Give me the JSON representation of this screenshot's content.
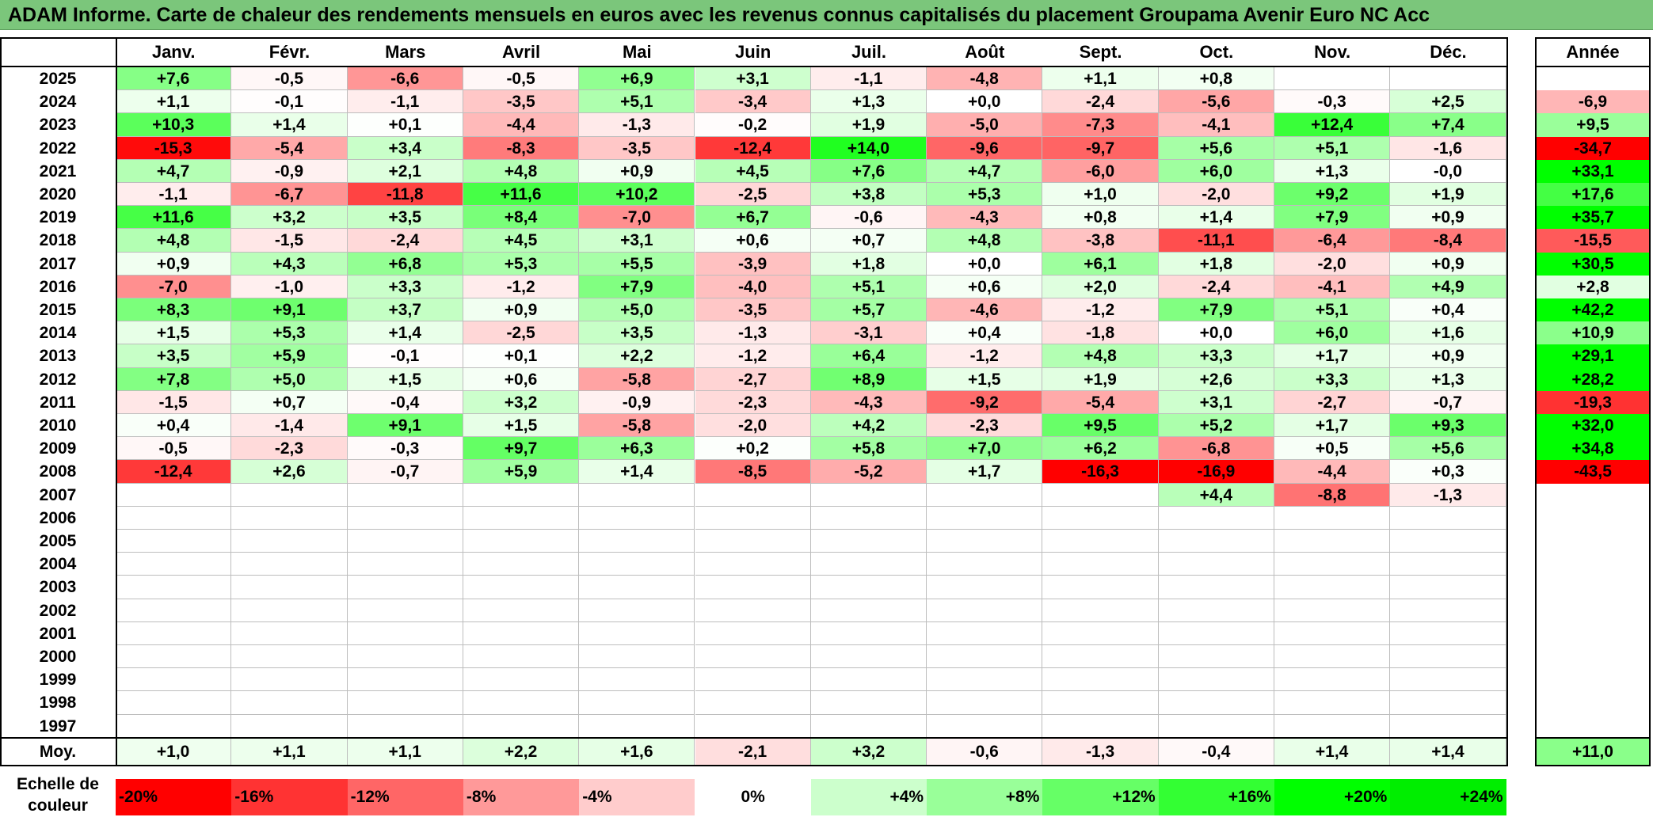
{
  "title": "ADAM Informe. Carte de chaleur des rendements mensuels en euros avec les revenus connus capitalisés du placement Groupama Avenir Euro NC Acc",
  "chart_data": {
    "type": "heatmap",
    "months": [
      "Janv.",
      "Févr.",
      "Mars",
      "Avril",
      "Mai",
      "Juin",
      "Juil.",
      "Août",
      "Sept.",
      "Oct.",
      "Nov.",
      "Déc."
    ],
    "year_header": "Année",
    "years": [
      "2025",
      "2024",
      "2023",
      "2022",
      "2021",
      "2020",
      "2019",
      "2018",
      "2017",
      "2016",
      "2015",
      "2014",
      "2013",
      "2012",
      "2011",
      "2010",
      "2009",
      "2008",
      "2007",
      "2006",
      "2005",
      "2004",
      "2003",
      "2002",
      "2001",
      "2000",
      "1999",
      "1998",
      "1997"
    ],
    "values": [
      [
        7.6,
        -0.5,
        -6.6,
        -0.5,
        6.9,
        3.1,
        -1.1,
        -4.8,
        1.1,
        0.8,
        null,
        null
      ],
      [
        1.1,
        -0.1,
        -1.1,
        -3.5,
        5.1,
        -3.4,
        1.3,
        0.0,
        -2.4,
        -5.6,
        -0.3,
        2.5
      ],
      [
        10.3,
        1.4,
        0.1,
        -4.4,
        -1.3,
        -0.2,
        1.9,
        -5.0,
        -7.3,
        -4.1,
        12.4,
        7.4
      ],
      [
        -15.3,
        -5.4,
        3.4,
        -8.3,
        -3.5,
        -12.4,
        14.0,
        -9.6,
        -9.7,
        5.6,
        5.1,
        -1.6
      ],
      [
        4.7,
        -0.9,
        2.1,
        4.8,
        0.9,
        4.5,
        7.6,
        4.7,
        -6.0,
        6.0,
        1.3,
        -0.0
      ],
      [
        -1.1,
        -6.7,
        -11.8,
        11.6,
        10.2,
        -2.5,
        3.8,
        5.3,
        1.0,
        -2.0,
        9.2,
        1.9
      ],
      [
        11.6,
        3.2,
        3.5,
        8.4,
        -7.0,
        6.7,
        -0.6,
        -4.3,
        0.8,
        1.4,
        7.9,
        0.9
      ],
      [
        4.8,
        -1.5,
        -2.4,
        4.5,
        3.1,
        0.6,
        0.7,
        4.8,
        -3.8,
        -11.1,
        -6.4,
        -8.4
      ],
      [
        0.9,
        4.3,
        6.8,
        5.3,
        5.5,
        -3.9,
        1.8,
        0.0,
        6.1,
        1.8,
        -2.0,
        0.9
      ],
      [
        -7.0,
        -1.0,
        3.3,
        -1.2,
        7.9,
        -4.0,
        5.1,
        0.6,
        2.0,
        -2.4,
        -4.1,
        4.9
      ],
      [
        8.3,
        9.1,
        3.7,
        0.9,
        5.0,
        -3.5,
        5.7,
        -4.6,
        -1.2,
        7.9,
        5.1,
        0.4
      ],
      [
        1.5,
        5.3,
        1.4,
        -2.5,
        3.5,
        -1.3,
        -3.1,
        0.4,
        -1.8,
        0.0,
        6.0,
        1.6
      ],
      [
        3.5,
        5.9,
        -0.1,
        0.1,
        2.2,
        -1.2,
        6.4,
        -1.2,
        4.8,
        3.3,
        1.7,
        0.9
      ],
      [
        7.8,
        5.0,
        1.5,
        0.6,
        -5.8,
        -2.7,
        8.9,
        1.5,
        1.9,
        2.6,
        3.3,
        1.3
      ],
      [
        -1.5,
        0.7,
        -0.4,
        3.2,
        -0.9,
        -2.3,
        -4.3,
        -9.2,
        -5.4,
        3.1,
        -2.7,
        -0.7
      ],
      [
        0.4,
        -1.4,
        9.1,
        1.5,
        -5.8,
        -2.0,
        4.2,
        -2.3,
        9.5,
        5.2,
        1.7,
        9.3
      ],
      [
        -0.5,
        -2.3,
        -0.3,
        9.7,
        6.3,
        0.2,
        5.8,
        7.0,
        6.2,
        -6.8,
        0.5,
        5.6
      ],
      [
        -12.4,
        2.6,
        -0.7,
        5.9,
        1.4,
        -8.5,
        -5.2,
        1.7,
        -16.3,
        -16.9,
        -4.4,
        0.3
      ],
      [
        null,
        null,
        null,
        null,
        null,
        null,
        null,
        null,
        null,
        4.4,
        -8.8,
        -1.3
      ],
      [
        null,
        null,
        null,
        null,
        null,
        null,
        null,
        null,
        null,
        null,
        null,
        null
      ],
      [
        null,
        null,
        null,
        null,
        null,
        null,
        null,
        null,
        null,
        null,
        null,
        null
      ],
      [
        null,
        null,
        null,
        null,
        null,
        null,
        null,
        null,
        null,
        null,
        null,
        null
      ],
      [
        null,
        null,
        null,
        null,
        null,
        null,
        null,
        null,
        null,
        null,
        null,
        null
      ],
      [
        null,
        null,
        null,
        null,
        null,
        null,
        null,
        null,
        null,
        null,
        null,
        null
      ],
      [
        null,
        null,
        null,
        null,
        null,
        null,
        null,
        null,
        null,
        null,
        null,
        null
      ],
      [
        null,
        null,
        null,
        null,
        null,
        null,
        null,
        null,
        null,
        null,
        null,
        null
      ],
      [
        null,
        null,
        null,
        null,
        null,
        null,
        null,
        null,
        null,
        null,
        null,
        null
      ],
      [
        null,
        null,
        null,
        null,
        null,
        null,
        null,
        null,
        null,
        null,
        null,
        null
      ],
      [
        null,
        null,
        null,
        null,
        null,
        null,
        null,
        null,
        null,
        null,
        null,
        null
      ]
    ],
    "annual": [
      null,
      -6.9,
      9.5,
      -34.7,
      33.1,
      17.6,
      35.7,
      -15.5,
      30.5,
      2.8,
      42.2,
      10.9,
      29.1,
      28.2,
      -19.3,
      32.0,
      34.8,
      -43.5,
      null,
      null,
      null,
      null,
      null,
      null,
      null,
      null,
      null,
      null,
      null
    ],
    "average_label": "Moy.",
    "average": [
      1.0,
      1.1,
      1.1,
      2.2,
      1.6,
      -2.1,
      3.2,
      -0.6,
      -1.3,
      -0.4,
      1.4,
      1.4
    ],
    "average_annual": 11.0,
    "scale_label": [
      "Echelle de",
      "couleur"
    ],
    "scale": [
      {
        "label": "-20%",
        "value": -20,
        "color": "#ff0000"
      },
      {
        "label": "-16%",
        "value": -16,
        "color": "#ff3333"
      },
      {
        "label": "-12%",
        "value": -12,
        "color": "#ff6666"
      },
      {
        "label": "-8%",
        "value": -8,
        "color": "#ff9999"
      },
      {
        "label": "-4%",
        "value": -4,
        "color": "#ffcccc"
      },
      {
        "label": "0%",
        "value": 0,
        "color": "#ffffff"
      },
      {
        "label": "+4%",
        "value": 4,
        "color": "#ccffcc"
      },
      {
        "label": "+8%",
        "value": 8,
        "color": "#99ff99"
      },
      {
        "label": "+12%",
        "value": 12,
        "color": "#66ff66"
      },
      {
        "label": "+16%",
        "value": 16,
        "color": "#33ff33"
      },
      {
        "label": "+20%",
        "value": 20,
        "color": "#00ff00"
      },
      {
        "label": "+24%",
        "value": 24,
        "color": "#00ee00"
      }
    ]
  }
}
